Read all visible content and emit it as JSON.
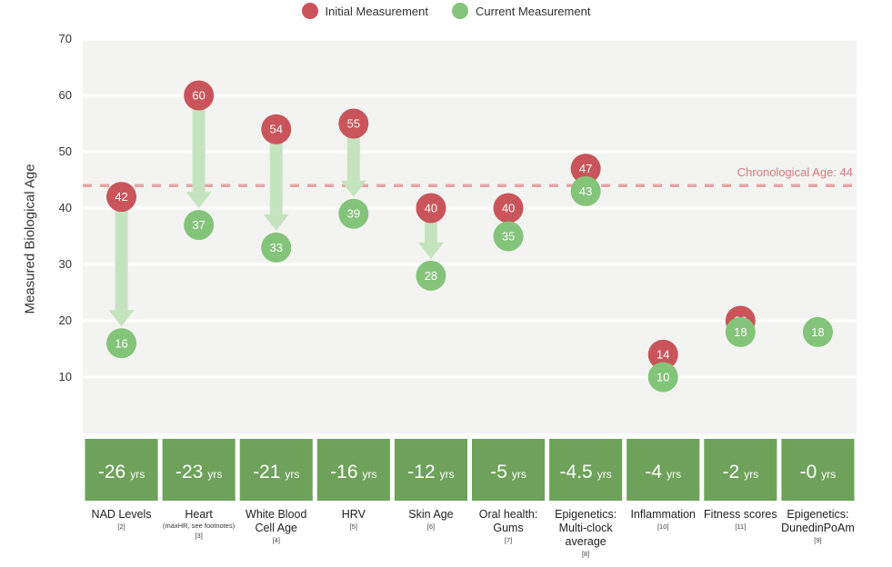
{
  "chart_data": {
    "type": "dot-arrow",
    "ylabel": "Measured Biological Age",
    "ylim": [
      0,
      70
    ],
    "yticks": [
      10,
      20,
      30,
      40,
      50,
      60,
      70
    ],
    "reference_line": {
      "value": 44,
      "label": "Chronological Age: 44",
      "color": "#e8a5a5"
    },
    "series": [
      {
        "name": "Initial Measurement",
        "color": "#c9545a",
        "values": [
          42,
          60,
          54,
          55,
          40,
          40,
          47,
          14,
          20,
          null
        ]
      },
      {
        "name": "Current Measurement",
        "color": "#84c47a",
        "values": [
          16,
          37,
          33,
          39,
          28,
          35,
          43,
          10,
          18,
          18
        ]
      }
    ],
    "categories": [
      {
        "name": "NAD Levels",
        "note": "",
        "ref": "[2]",
        "delta": "-26",
        "unit": "yrs"
      },
      {
        "name": "Heart",
        "note": "(maxHR, see footnotes)",
        "ref": "[3]",
        "delta": "-23",
        "unit": "yrs"
      },
      {
        "name": "White Blood Cell Age",
        "note": "",
        "ref": "[4]",
        "delta": "-21",
        "unit": "yrs"
      },
      {
        "name": "HRV",
        "note": "",
        "ref": "[5]",
        "delta": "-16",
        "unit": "yrs"
      },
      {
        "name": "Skin Age",
        "note": "",
        "ref": "[6]",
        "delta": "-12",
        "unit": "yrs"
      },
      {
        "name": "Oral health: Gums",
        "note": "",
        "ref": "[7]",
        "delta": "-5",
        "unit": "yrs"
      },
      {
        "name": "Epigenetics: Multi-clock average",
        "note": "",
        "ref": "[8]",
        "delta": "-4.5",
        "unit": "yrs"
      },
      {
        "name": "Inflammation",
        "note": "",
        "ref": "[10]",
        "delta": "-4",
        "unit": "yrs"
      },
      {
        "name": "Fitness scores",
        "note": "",
        "ref": "[11]",
        "delta": "-2",
        "unit": "yrs"
      },
      {
        "name": "Epigenetics: DunedinPoAm",
        "note": "",
        "ref": "[9]",
        "delta": "-0",
        "unit": "yrs"
      }
    ],
    "colors": {
      "plot_bg": "#f3f4f2",
      "delta_box": "#6ea25a",
      "arrow": "#c6e3bf"
    }
  }
}
